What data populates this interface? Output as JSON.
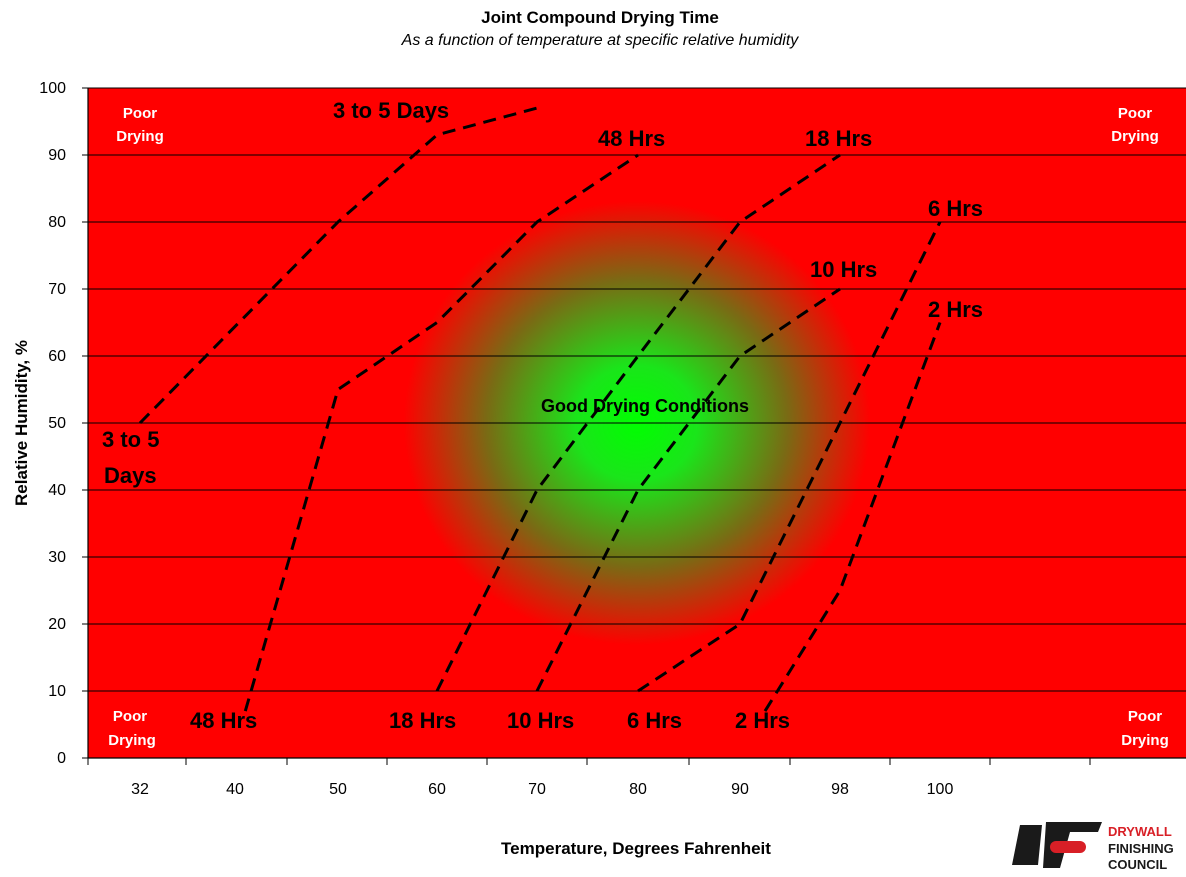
{
  "colors": {
    "poor": "#ff0000",
    "good": "#00ff00",
    "grid": "#000000",
    "curve": "#000000",
    "brand_red": "#d81f26"
  },
  "logo": {
    "line1": "DRYWALL",
    "line2": "FINISHING",
    "line3": "COUNCIL"
  },
  "chart_data": {
    "type": "line",
    "title": "Joint Compound Drying Time",
    "subtitle": "As a function of temperature at specific relative humidity",
    "xlabel": "Temperature, Degrees Fahrenheit",
    "ylabel": "Relative Humidity, %",
    "x_ticks": [
      "32",
      "40",
      "50",
      "60",
      "70",
      "80",
      "90",
      "98",
      "100"
    ],
    "y_ticks": [
      0,
      10,
      20,
      30,
      40,
      50,
      60,
      70,
      80,
      90,
      100
    ],
    "ylim": [
      0,
      100
    ],
    "grid": "horizontal",
    "line_style": "dashed",
    "background": "radial gradient: green center (good drying) to red edges (poor drying)",
    "series": [
      {
        "name": "3 to 5 Days",
        "points": [
          [
            32,
            50
          ],
          [
            50,
            80
          ],
          [
            60,
            93
          ],
          [
            70,
            97
          ]
        ]
      },
      {
        "name": "48 Hrs",
        "points": [
          [
            41,
            7
          ],
          [
            50,
            55
          ],
          [
            60,
            65
          ],
          [
            70,
            80
          ],
          [
            80,
            90
          ]
        ]
      },
      {
        "name": "18 Hrs",
        "points": [
          [
            60,
            10
          ],
          [
            70,
            40
          ],
          [
            80,
            60
          ],
          [
            90,
            80
          ],
          [
            98,
            90
          ]
        ]
      },
      {
        "name": "10 Hrs",
        "points": [
          [
            70,
            10
          ],
          [
            80,
            40
          ],
          [
            90,
            60
          ],
          [
            98,
            70
          ]
        ]
      },
      {
        "name": "6 Hrs",
        "points": [
          [
            80,
            10
          ],
          [
            90,
            20
          ],
          [
            98,
            50
          ],
          [
            100,
            80
          ]
        ]
      },
      {
        "name": "2 Hrs",
        "points": [
          [
            92,
            7
          ],
          [
            98,
            25
          ],
          [
            100,
            65
          ]
        ]
      }
    ],
    "labels": {
      "days_top": "3 to 5 Days",
      "days_left_1": "3 to 5",
      "days_left_2": "Days",
      "h48_top": "48 Hrs",
      "h18_top": "18 Hrs",
      "h6_top": "6 Hrs",
      "h10_top": "10 Hrs",
      "h2_top": "2 Hrs",
      "h48_bottom": "48 Hrs",
      "h18_bottom": "18 Hrs",
      "h10_bottom": "10 Hrs",
      "h6_bottom": "6 Hrs",
      "h2_bottom": "2 Hrs"
    },
    "annotations": {
      "poor": "Poor",
      "drying": "Drying",
      "good": "Good Drying Conditions"
    }
  }
}
